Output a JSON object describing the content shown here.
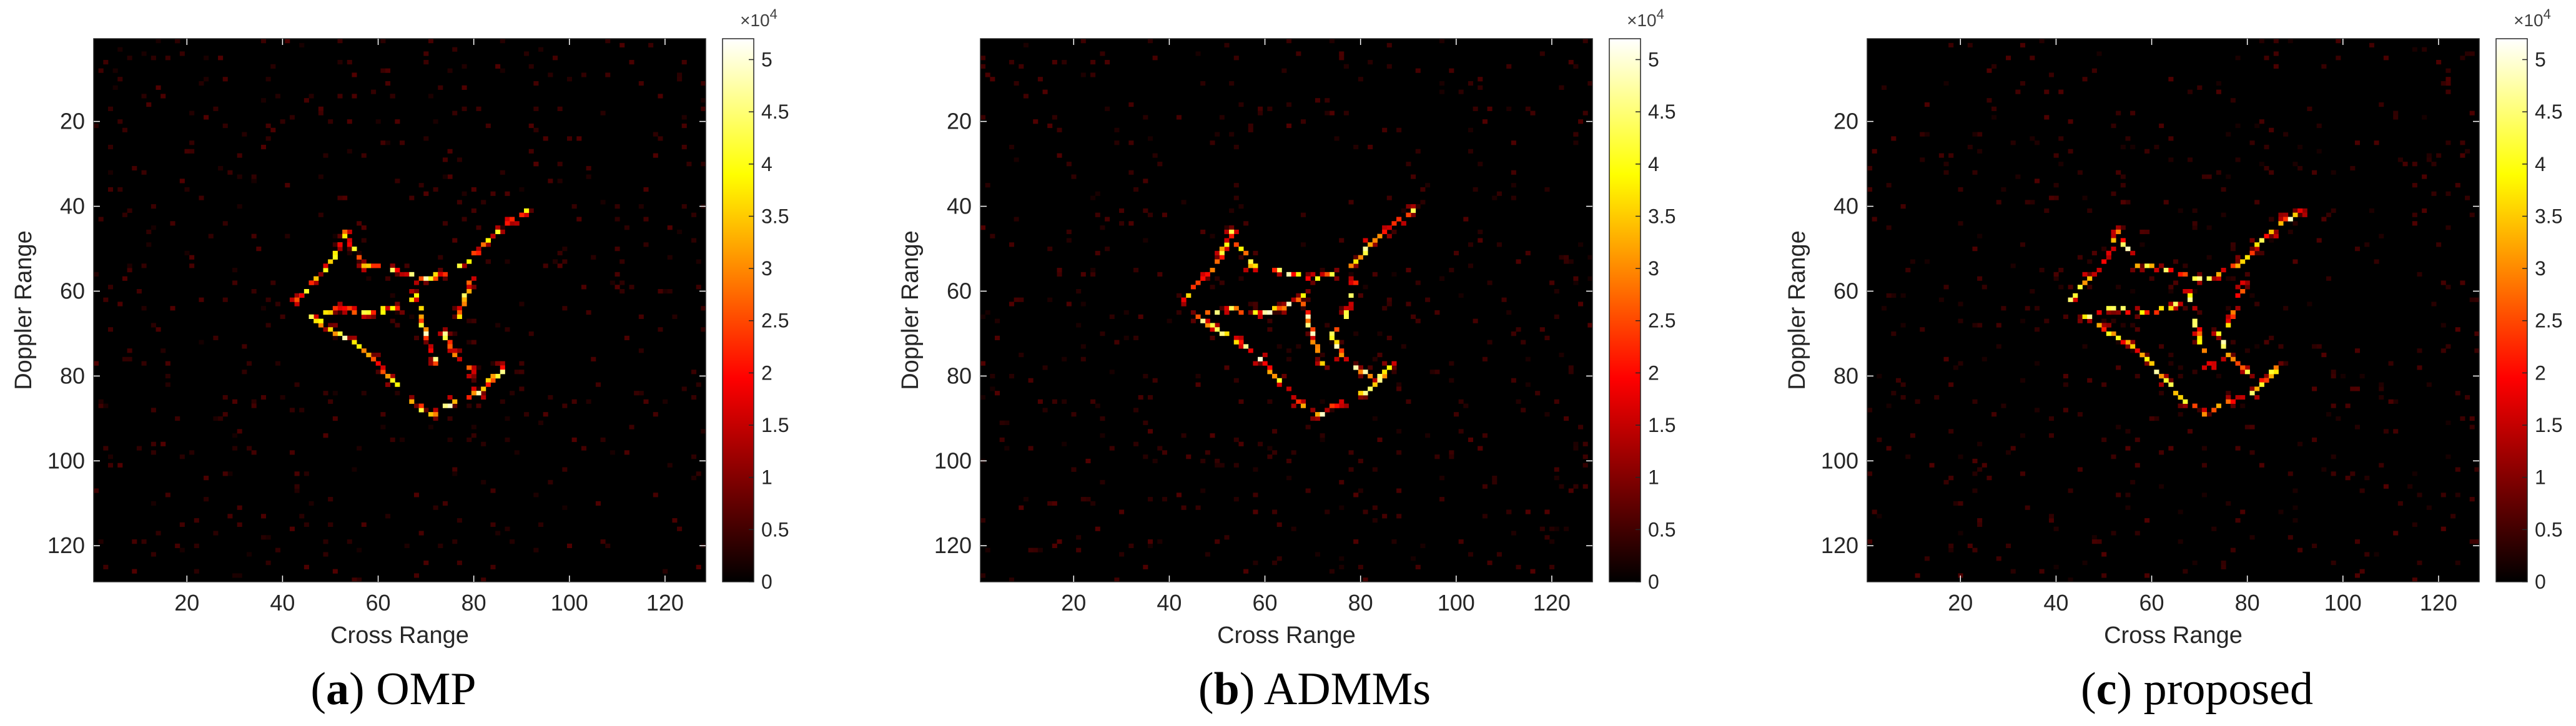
{
  "figure": {
    "panels": [
      {
        "caption_letter": "a",
        "caption_text": "OMP"
      },
      {
        "caption_letter": "b",
        "caption_text": "ADMMs"
      },
      {
        "caption_letter": "c",
        "caption_text": "proposed"
      }
    ]
  },
  "chart_data": [
    {
      "type": "heatmap",
      "panel": "a",
      "title": "",
      "xlabel": "Cross Range",
      "ylabel": "Doppler Range",
      "xlim": [
        0.5,
        128.5
      ],
      "ylim": [
        128.5,
        0.5
      ],
      "x_ticks": [
        20,
        40,
        60,
        80,
        100,
        120
      ],
      "y_ticks": [
        20,
        40,
        60,
        80,
        100,
        120
      ],
      "colormap": "hot",
      "colorbar": {
        "range": [
          0,
          52000
        ],
        "multiplier": "×10^4",
        "ticks": [
          0,
          0.5,
          1,
          1.5,
          2,
          2.5,
          3,
          3.5,
          4,
          4.5,
          5
        ]
      },
      "approx_outline_points": [
        [
          43,
          62
        ],
        [
          47,
          57
        ],
        [
          51,
          51
        ],
        [
          53,
          46
        ],
        [
          57,
          54
        ],
        [
          63,
          55
        ],
        [
          69,
          57
        ],
        [
          74,
          56
        ],
        [
          79,
          53
        ],
        [
          82,
          49
        ],
        [
          85,
          46
        ],
        [
          88,
          43
        ],
        [
          91,
          41
        ],
        [
          79,
          58
        ],
        [
          77,
          65
        ],
        [
          74,
          70
        ],
        [
          76,
          75
        ],
        [
          80,
          79
        ],
        [
          84,
          81
        ],
        [
          86,
          78
        ],
        [
          81,
          84
        ],
        [
          76,
          86
        ],
        [
          71,
          89
        ],
        [
          67,
          86
        ],
        [
          63,
          81
        ],
        [
          59,
          76
        ],
        [
          55,
          72
        ],
        [
          50,
          69
        ],
        [
          46,
          66
        ],
        [
          52,
          64
        ],
        [
          58,
          65
        ],
        [
          64,
          64
        ],
        [
          68,
          61
        ],
        [
          70,
          71
        ],
        [
          72,
          77
        ]
      ],
      "approx_peak_value": 52000
    },
    {
      "type": "heatmap",
      "panel": "b",
      "title": "",
      "xlabel": "Cross Range",
      "ylabel": "Doppler Range",
      "xlim": [
        0.5,
        128.5
      ],
      "ylim": [
        128.5,
        0.5
      ],
      "x_ticks": [
        20,
        40,
        60,
        80,
        100,
        120
      ],
      "y_ticks": [
        20,
        40,
        60,
        80,
        100,
        120
      ],
      "colormap": "hot",
      "colorbar": {
        "range": [
          0,
          52000
        ],
        "multiplier": "×10^4",
        "ticks": [
          0,
          0.5,
          1,
          1.5,
          2,
          2.5,
          3,
          3.5,
          4,
          4.5,
          5
        ]
      },
      "approx_outline_points": [
        [
          43,
          62
        ],
        [
          47,
          57
        ],
        [
          51,
          51
        ],
        [
          53,
          46
        ],
        [
          57,
          54
        ],
        [
          63,
          55
        ],
        [
          69,
          57
        ],
        [
          74,
          56
        ],
        [
          79,
          53
        ],
        [
          82,
          49
        ],
        [
          85,
          46
        ],
        [
          88,
          43
        ],
        [
          91,
          41
        ],
        [
          79,
          58
        ],
        [
          77,
          65
        ],
        [
          74,
          70
        ],
        [
          76,
          75
        ],
        [
          80,
          79
        ],
        [
          84,
          81
        ],
        [
          86,
          78
        ],
        [
          81,
          84
        ],
        [
          76,
          86
        ],
        [
          71,
          89
        ],
        [
          67,
          86
        ],
        [
          63,
          81
        ],
        [
          59,
          76
        ],
        [
          55,
          72
        ],
        [
          50,
          69
        ],
        [
          46,
          66
        ],
        [
          52,
          64
        ],
        [
          58,
          65
        ],
        [
          64,
          64
        ],
        [
          68,
          61
        ],
        [
          70,
          71
        ],
        [
          72,
          77
        ]
      ],
      "approx_peak_value": 52000
    },
    {
      "type": "heatmap",
      "panel": "c",
      "title": "",
      "xlabel": "Cross Range",
      "ylabel": "Doppler Range",
      "xlim": [
        0.5,
        128.5
      ],
      "ylim": [
        128.5,
        0.5
      ],
      "x_ticks": [
        20,
        40,
        60,
        80,
        100,
        120
      ],
      "y_ticks": [
        20,
        40,
        60,
        80,
        100,
        120
      ],
      "colormap": "hot",
      "colorbar": {
        "range": [
          0,
          52000
        ],
        "multiplier": "×10^4",
        "ticks": [
          0,
          0.5,
          1,
          1.5,
          2,
          2.5,
          3,
          3.5,
          4,
          4.5,
          5
        ]
      },
      "approx_outline_points": [
        [
          43,
          62
        ],
        [
          47,
          57
        ],
        [
          51,
          51
        ],
        [
          53,
          46
        ],
        [
          57,
          54
        ],
        [
          63,
          55
        ],
        [
          69,
          57
        ],
        [
          74,
          56
        ],
        [
          79,
          53
        ],
        [
          82,
          49
        ],
        [
          85,
          46
        ],
        [
          88,
          43
        ],
        [
          91,
          41
        ],
        [
          79,
          58
        ],
        [
          77,
          65
        ],
        [
          74,
          70
        ],
        [
          76,
          75
        ],
        [
          80,
          79
        ],
        [
          84,
          81
        ],
        [
          86,
          78
        ],
        [
          81,
          84
        ],
        [
          76,
          86
        ],
        [
          71,
          89
        ],
        [
          67,
          86
        ],
        [
          63,
          81
        ],
        [
          59,
          76
        ],
        [
          55,
          72
        ],
        [
          50,
          69
        ],
        [
          46,
          66
        ],
        [
          52,
          64
        ],
        [
          58,
          65
        ],
        [
          64,
          64
        ],
        [
          68,
          61
        ],
        [
          70,
          71
        ],
        [
          72,
          77
        ]
      ],
      "approx_peak_value": 52000
    }
  ]
}
